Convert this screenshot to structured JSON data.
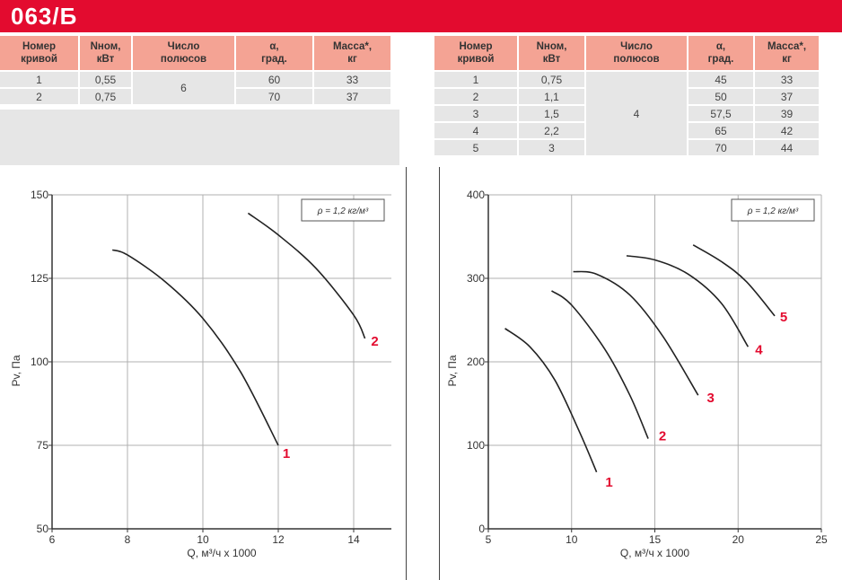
{
  "title": "063/Б",
  "table_left": {
    "headers": [
      [
        "Номер",
        "кривой"
      ],
      [
        "Nном,",
        "кВт"
      ],
      [
        "Число",
        "полюсов"
      ],
      [
        "α,",
        "град."
      ],
      [
        "Масса*,",
        "кг"
      ]
    ],
    "poles": "6",
    "rows": [
      {
        "curve": "1",
        "power": "0,55",
        "angle": "60",
        "mass": "33"
      },
      {
        "curve": "2",
        "power": "0,75",
        "angle": "70",
        "mass": "37"
      }
    ]
  },
  "table_right": {
    "headers": [
      [
        "Номер",
        "кривой"
      ],
      [
        "Nном,",
        "кВт"
      ],
      [
        "Число",
        "полюсов"
      ],
      [
        "α,",
        "град."
      ],
      [
        "Масса*,",
        "кг"
      ]
    ],
    "poles": "4",
    "rows": [
      {
        "curve": "1",
        "power": "0,75",
        "angle": "45",
        "mass": "33"
      },
      {
        "curve": "2",
        "power": "1,1",
        "angle": "50",
        "mass": "37"
      },
      {
        "curve": "3",
        "power": "1,5",
        "angle": "57,5",
        "mass": "39"
      },
      {
        "curve": "4",
        "power": "2,2",
        "angle": "65",
        "mass": "42"
      },
      {
        "curve": "5",
        "power": "3",
        "angle": "70",
        "mass": "44"
      }
    ]
  },
  "colors": {
    "accent": "#e30b2f",
    "header": "#f4a394",
    "cell": "#e6e6e6",
    "curve": "#222222",
    "grid": "#b0b0b0"
  },
  "chart_data": [
    {
      "type": "line",
      "xlabel": "Q, м³/ч x 1000",
      "ylabel": "Pv, Па",
      "density_label": "ρ = 1,2 кг/м³",
      "xlim": [
        6,
        15
      ],
      "ylim": [
        50,
        150
      ],
      "xticks": [
        6,
        8,
        10,
        12,
        14
      ],
      "yticks": [
        50,
        75,
        100,
        125,
        150
      ],
      "grid": true,
      "series": [
        {
          "name": "1",
          "x": [
            7.6,
            8.0,
            9.0,
            10.0,
            11.0,
            12.0
          ],
          "y": [
            133.5,
            132,
            124,
            113,
            97,
            75
          ]
        },
        {
          "name": "2",
          "x": [
            11.2,
            12.0,
            13.0,
            14.0,
            14.3
          ],
          "y": [
            144.5,
            138,
            128,
            114,
            107
          ]
        }
      ]
    },
    {
      "type": "line",
      "xlabel": "Q, м³/ч x 1000",
      "ylabel": "Pv, Па",
      "density_label": "ρ = 1,2 кг/м³",
      "xlim": [
        5,
        25
      ],
      "ylim": [
        0,
        400
      ],
      "xticks": [
        5,
        10,
        15,
        20,
        25
      ],
      "yticks": [
        0,
        100,
        200,
        300,
        400
      ],
      "grid": true,
      "series": [
        {
          "name": "1",
          "x": [
            6.0,
            7.5,
            9.0,
            10.5,
            11.5
          ],
          "y": [
            240,
            218,
            178,
            115,
            68
          ]
        },
        {
          "name": "2",
          "x": [
            8.8,
            10.0,
            12.0,
            13.5,
            14.6
          ],
          "y": [
            285,
            268,
            215,
            160,
            108
          ]
        },
        {
          "name": "3",
          "x": [
            10.1,
            11.5,
            13.5,
            15.5,
            17.6
          ],
          "y": [
            308,
            305,
            280,
            230,
            160
          ]
        },
        {
          "name": "4",
          "x": [
            13.3,
            15.0,
            17.0,
            19.0,
            20.6
          ],
          "y": [
            327,
            322,
            305,
            270,
            218
          ]
        },
        {
          "name": "5",
          "x": [
            17.3,
            19.0,
            20.5,
            22.2
          ],
          "y": [
            340,
            320,
            296,
            255
          ]
        }
      ]
    }
  ]
}
